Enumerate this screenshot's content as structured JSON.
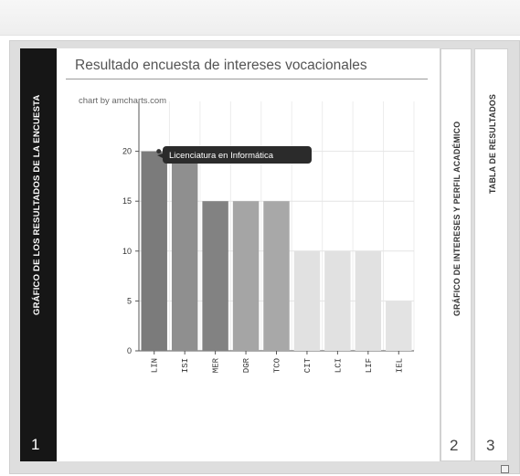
{
  "tabs": [
    {
      "number": "1",
      "label": "GRÁFICO DE LOS RESULTADOS DE LA ENCUESTA"
    },
    {
      "number": "2",
      "label": "GRÁFICO DE INTERESES Y PERFIL ACADÉMICO"
    },
    {
      "number": "3",
      "label": "TABLA DE RESULTADOS"
    }
  ],
  "panel": {
    "title": "Resultado encuesta de intereses vocacionales",
    "credit": "chart by amcharts.com"
  },
  "tooltip": {
    "text": "Licenciatura en Informática"
  },
  "chart_data": {
    "type": "bar",
    "categories": [
      "LIN",
      "ISI",
      "MER",
      "DGR",
      "TCO",
      "CIT",
      "LCI",
      "LIF",
      "IEL"
    ],
    "values": [
      20,
      19,
      15,
      15,
      15,
      10,
      10,
      10,
      5
    ],
    "colors": [
      "#7b7b7b",
      "#8f8f8f",
      "#828282",
      "#a5a5a5",
      "#a8a8a8",
      "#e1e1e1",
      "#e1e1e1",
      "#e1e1e1",
      "#e3e3e3"
    ],
    "ylim": [
      0,
      25
    ],
    "yticks": [
      0,
      5,
      10,
      15,
      20
    ],
    "grid": true,
    "title": "",
    "xlabel": "",
    "ylabel": ""
  }
}
